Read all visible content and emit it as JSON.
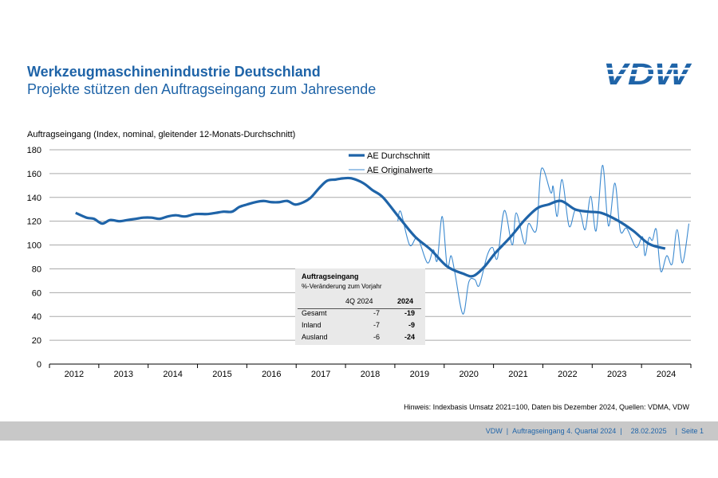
{
  "header": {
    "title": "Werkzeugmaschinenindustrie Deutschland",
    "subtitle": "Projekte stützen den Auftragseingang zum Jahresende",
    "logo_text": "VDW"
  },
  "colors": {
    "brand": "#1f64a8",
    "average": "#1f64a8",
    "original": "#3c8ad0"
  },
  "chart_data": {
    "type": "line",
    "ylabel": "Auftragseingang (Index, nominal, gleitender 12-Monats-Durchschnitt)",
    "ylim": [
      0,
      180
    ],
    "yticks": [
      0,
      20,
      40,
      60,
      80,
      100,
      120,
      140,
      160,
      180
    ],
    "xlim": [
      2012,
      2025
    ],
    "xticks": [
      "2012",
      "2013",
      "2014",
      "2015",
      "2016",
      "2017",
      "2018",
      "2019",
      "2020",
      "2021",
      "2022",
      "2023",
      "2024"
    ],
    "grid": "horizontal",
    "legend": "top-center",
    "series": [
      {
        "name": "AE Durchschnitt",
        "points": [
          [
            2012.53,
            127
          ],
          [
            2012.75,
            123
          ],
          [
            2012.9,
            122
          ],
          [
            2013.07,
            118
          ],
          [
            2013.23,
            121
          ],
          [
            2013.42,
            120
          ],
          [
            2013.58,
            121
          ],
          [
            2013.75,
            122
          ],
          [
            2013.9,
            123
          ],
          [
            2014.07,
            123
          ],
          [
            2014.23,
            122
          ],
          [
            2014.4,
            124
          ],
          [
            2014.56,
            125
          ],
          [
            2014.75,
            124
          ],
          [
            2014.96,
            126
          ],
          [
            2015.2,
            126
          ],
          [
            2015.37,
            127
          ],
          [
            2015.53,
            128
          ],
          [
            2015.7,
            128
          ],
          [
            2015.85,
            132
          ],
          [
            2016.0,
            134
          ],
          [
            2016.17,
            136
          ],
          [
            2016.34,
            137
          ],
          [
            2016.5,
            136
          ],
          [
            2016.66,
            136
          ],
          [
            2016.82,
            137
          ],
          [
            2016.98,
            134
          ],
          [
            2017.15,
            136
          ],
          [
            2017.3,
            140
          ],
          [
            2017.47,
            148
          ],
          [
            2017.63,
            154
          ],
          [
            2017.8,
            155
          ],
          [
            2017.95,
            156
          ],
          [
            2018.12,
            156
          ],
          [
            2018.36,
            152
          ],
          [
            2018.55,
            146
          ],
          [
            2018.76,
            140
          ],
          [
            2019.09,
            123
          ],
          [
            2019.41,
            107
          ],
          [
            2019.73,
            96
          ],
          [
            2020.06,
            82
          ],
          [
            2020.38,
            76
          ],
          [
            2020.59,
            74
          ],
          [
            2020.82,
            82
          ],
          [
            2021.03,
            93
          ],
          [
            2021.35,
            107
          ],
          [
            2021.63,
            121
          ],
          [
            2021.89,
            131
          ],
          [
            2022.11,
            134
          ],
          [
            2022.37,
            137
          ],
          [
            2022.65,
            130
          ],
          [
            2022.92,
            128
          ],
          [
            2023.18,
            127
          ],
          [
            2023.5,
            121
          ],
          [
            2023.83,
            112
          ],
          [
            2024.15,
            101
          ],
          [
            2024.48,
            97
          ]
        ]
      },
      {
        "name": "AE Originalwerte",
        "points": [
          [
            2019.06,
            120
          ],
          [
            2019.12,
            128
          ],
          [
            2019.3,
            100
          ],
          [
            2019.46,
            106
          ],
          [
            2019.66,
            85
          ],
          [
            2019.78,
            96
          ],
          [
            2019.86,
            87
          ],
          [
            2019.96,
            124
          ],
          [
            2020.06,
            82
          ],
          [
            2020.14,
            91
          ],
          [
            2020.22,
            76
          ],
          [
            2020.38,
            42
          ],
          [
            2020.5,
            69
          ],
          [
            2020.62,
            71
          ],
          [
            2020.71,
            66
          ],
          [
            2020.87,
            91
          ],
          [
            2020.98,
            98
          ],
          [
            2021.08,
            89
          ],
          [
            2021.22,
            129
          ],
          [
            2021.38,
            100
          ],
          [
            2021.46,
            127
          ],
          [
            2021.63,
            101
          ],
          [
            2021.71,
            118
          ],
          [
            2021.87,
            113
          ],
          [
            2021.97,
            164
          ],
          [
            2022.16,
            144
          ],
          [
            2022.21,
            149
          ],
          [
            2022.29,
            124
          ],
          [
            2022.39,
            155
          ],
          [
            2022.53,
            116
          ],
          [
            2022.65,
            129
          ],
          [
            2022.76,
            127
          ],
          [
            2022.86,
            113
          ],
          [
            2022.97,
            141
          ],
          [
            2023.08,
            112
          ],
          [
            2023.21,
            167
          ],
          [
            2023.33,
            116
          ],
          [
            2023.46,
            152
          ],
          [
            2023.57,
            112
          ],
          [
            2023.7,
            114
          ],
          [
            2023.89,
            98
          ],
          [
            2024.02,
            107
          ],
          [
            2024.07,
            91
          ],
          [
            2024.15,
            106
          ],
          [
            2024.22,
            104
          ],
          [
            2024.3,
            113
          ],
          [
            2024.39,
            78
          ],
          [
            2024.51,
            91
          ],
          [
            2024.62,
            84
          ],
          [
            2024.72,
            113
          ],
          [
            2024.83,
            85
          ],
          [
            2024.96,
            118
          ]
        ]
      }
    ]
  },
  "table": {
    "title": "Auftragseingang",
    "subtitle": "%-Veränderung zum Vorjahr",
    "col1": "4Q 2024",
    "col2": "2024",
    "rows": [
      {
        "label": "Gesamt",
        "q": "-7",
        "y": "-19"
      },
      {
        "label": "Inland",
        "q": "-7",
        "y": "-9"
      },
      {
        "label": "Ausland",
        "q": "-6",
        "y": "-24"
      }
    ]
  },
  "hint": "Hinweis: Indexbasis Umsatz 2021=100, Daten bis Dezember 2024, Quellen: VDMA, VDW",
  "footer": {
    "org": "VDW",
    "sep1": "|",
    "doc": "Auftragseingang 4. Quartal 2024",
    "sep2": "|",
    "date": "28.02.2025",
    "sep3": "|",
    "page": "Seite  1"
  }
}
